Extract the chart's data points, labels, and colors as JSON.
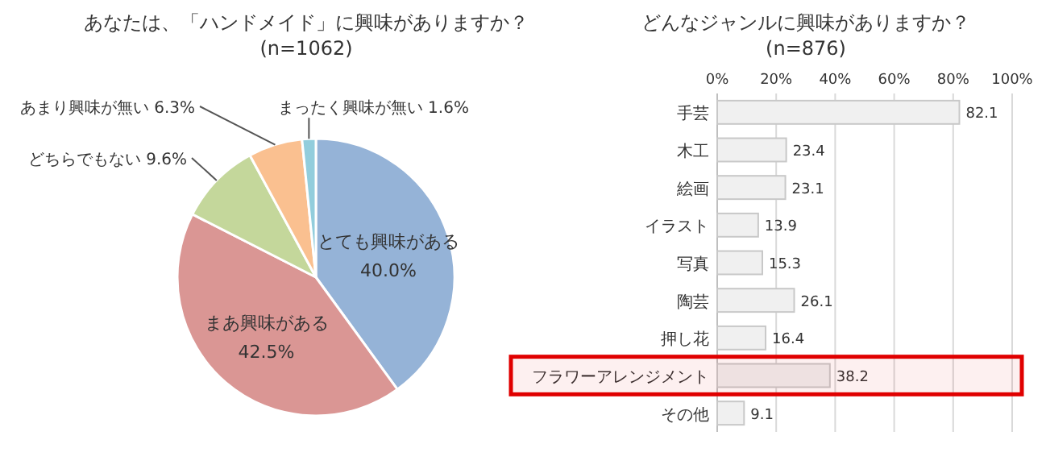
{
  "chart_data": [
    {
      "type": "pie",
      "title": "あなたは、「ハンドメイド」に興味がありますか？",
      "subtitle": "(n=1062)",
      "categories": [
        "とても興味がある",
        "まあ興味がある",
        "どちらでもない",
        "あまり興味が無い",
        "まったく興味が無い"
      ],
      "values": [
        40.0,
        42.5,
        9.6,
        6.3,
        1.6
      ],
      "value_labels": [
        "40.0%",
        "42.5%",
        "9.6%",
        "6.3%",
        "1.6%"
      ],
      "colors": [
        "#95b3d7",
        "#da9694",
        "#c4d79b",
        "#fac090",
        "#92cddc"
      ]
    },
    {
      "type": "bar",
      "orientation": "horizontal",
      "title": "どんなジャンルに興味がありますか？",
      "subtitle": "(n=876)",
      "categories": [
        "手芸",
        "木工",
        "絵画",
        "イラスト",
        "写真",
        "陶芸",
        "押し花",
        "フラワーアレンジメント",
        "その他"
      ],
      "values": [
        82.1,
        23.4,
        23.1,
        13.9,
        15.3,
        26.1,
        16.4,
        38.2,
        9.1
      ],
      "color": "#f0f0f0",
      "data_labels": true,
      "grid": "x",
      "xlim": [
        0,
        100
      ],
      "xticks": [
        {
          "value": 0,
          "label": "0%"
        },
        {
          "value": 20,
          "label": "20%"
        },
        {
          "value": 40,
          "label": "40%"
        },
        {
          "value": 60,
          "label": "60%"
        },
        {
          "value": 80,
          "label": "80%"
        },
        {
          "value": 100,
          "label": "100%"
        }
      ],
      "bands": [
        {
          "axis": "y",
          "from": "フラワーアレンジメント",
          "to": "フラワーアレンジメント",
          "color": "#e00000"
        }
      ]
    }
  ]
}
